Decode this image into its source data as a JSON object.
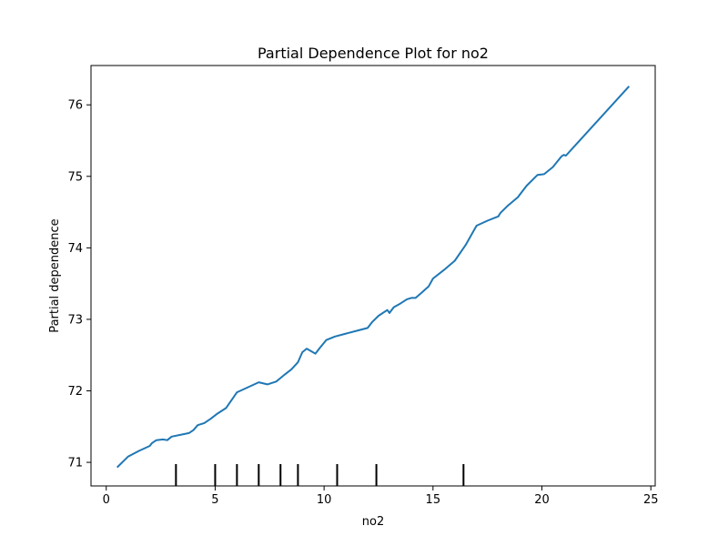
{
  "chart_data": {
    "type": "line",
    "title": "Partial Dependence Plot for no2",
    "xlabel": "no2",
    "ylabel": "Partial dependence",
    "xlim": [
      -0.7,
      25.2
    ],
    "ylim": [
      70.67,
      76.55
    ],
    "xticks": [
      0,
      5,
      10,
      15,
      20,
      25
    ],
    "yticks": [
      71,
      72,
      73,
      74,
      75,
      76
    ],
    "grid": false,
    "color": "#1f77b4",
    "series": [
      {
        "x": [
          0.5,
          1.0,
          1.5,
          2.0,
          2.1,
          2.3,
          2.6,
          2.8,
          3.0,
          3.5,
          3.8,
          4.0,
          4.2,
          4.5,
          4.8,
          5.1,
          5.5,
          6.0,
          6.5,
          7.0,
          7.4,
          7.8,
          8.0,
          8.2,
          8.5,
          8.8,
          8.9,
          9.0,
          9.2,
          9.6,
          9.8,
          10.1,
          10.5,
          11.0,
          11.5,
          12.0,
          12.2,
          12.5,
          12.9,
          13.0,
          13.2,
          13.5,
          13.8,
          14.0,
          14.2,
          14.5,
          14.8,
          15.0,
          15.5,
          16.0,
          16.5,
          17.0,
          17.5,
          18.0,
          18.1,
          18.4,
          18.9,
          19.0,
          19.3,
          19.8,
          20.1,
          20.5,
          20.9,
          21.0,
          21.1,
          24.0
        ],
        "y": [
          70.93,
          71.08,
          71.16,
          71.23,
          71.27,
          71.31,
          71.32,
          71.31,
          71.36,
          71.39,
          71.41,
          71.45,
          71.52,
          71.55,
          71.61,
          71.68,
          71.76,
          71.98,
          72.05,
          72.12,
          72.09,
          72.13,
          72.18,
          72.23,
          72.3,
          72.4,
          72.47,
          72.54,
          72.59,
          72.52,
          72.6,
          72.71,
          72.76,
          72.8,
          72.84,
          72.88,
          72.96,
          73.05,
          73.13,
          73.09,
          73.17,
          73.22,
          73.28,
          73.3,
          73.3,
          73.38,
          73.46,
          73.57,
          73.69,
          73.82,
          74.04,
          74.31,
          74.38,
          74.44,
          74.49,
          74.58,
          74.71,
          74.75,
          74.87,
          75.02,
          75.03,
          75.13,
          75.28,
          75.3,
          75.29,
          76.26
        ]
      }
    ],
    "rug": [
      3.2,
      5.0,
      6.0,
      7.0,
      8.0,
      8.8,
      10.6,
      12.4,
      16.4
    ]
  }
}
